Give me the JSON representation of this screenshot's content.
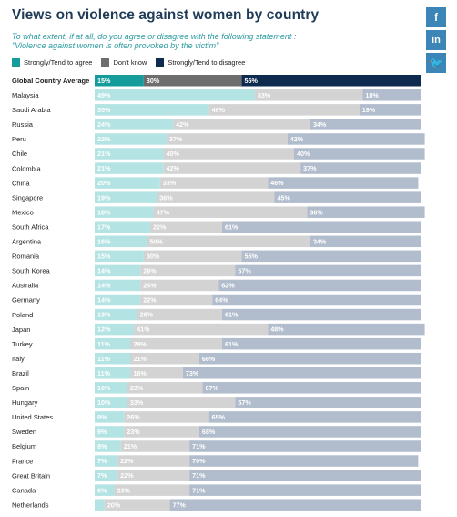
{
  "title": "Views on violence against women by country",
  "subtitle": "To what extent, if at all, do you agree or disagree with the following statement :\n\"Violence against women is often provoked by the victim\"",
  "social": {
    "facebook": "f",
    "linkedin": "in",
    "twitter": "🐦"
  },
  "colors": {
    "agree": "#b4e3e3",
    "dontknow": "#d3d3d3",
    "disagree": "#b1bccc",
    "avg_agree": "#169b9b",
    "avg_dontknow": "#6e6e6e",
    "avg_disagree": "#0e2a4f",
    "legend_agree": "#169b9b",
    "legend_dontknow": "#6e6e6e",
    "legend_disagree": "#0e2a4f"
  },
  "chart_data": {
    "type": "bar",
    "stacked": true,
    "orientation": "horizontal",
    "unit": "%",
    "categories": [
      "Global Country Average",
      "Malaysia",
      "Saudi Arabia",
      "Russia",
      "Peru",
      "Chile",
      "Colombia",
      "China",
      "Singapore",
      "Mexico",
      "South Africa",
      "Argentina",
      "Romania",
      "South Korea",
      "Australia",
      "Germany",
      "Poland",
      "Japan",
      "Turkey",
      "Italy",
      "Brazil",
      "Spain",
      "Hungary",
      "United States",
      "Sweden",
      "Belgium",
      "France",
      "Great Britain",
      "Canada",
      "Netherlands"
    ],
    "series": [
      {
        "name": "Strongly/Tend to agree",
        "values": [
          15,
          49,
          35,
          24,
          22,
          21,
          21,
          20,
          19,
          18,
          17,
          16,
          15,
          14,
          14,
          14,
          13,
          12,
          11,
          11,
          11,
          10,
          10,
          9,
          9,
          8,
          7,
          7,
          6,
          3
        ],
        "labels": [
          "15%",
          "49%",
          "35%",
          "24%",
          "22%",
          "21%",
          "21%",
          "20%",
          "19%",
          "18%",
          "17%",
          "16%",
          "15%",
          "14%",
          "14%",
          "14%",
          "13%",
          "12%",
          "11%",
          "11%",
          "11%",
          "10%",
          "10%",
          "9%",
          "9%",
          "8%",
          "7%",
          "7%",
          "6%",
          ""
        ]
      },
      {
        "name": "Don't know",
        "values": [
          30,
          33,
          46,
          42,
          37,
          40,
          42,
          33,
          36,
          47,
          22,
          50,
          30,
          29,
          24,
          22,
          26,
          41,
          28,
          21,
          16,
          23,
          33,
          26,
          23,
          21,
          22,
          22,
          23,
          20
        ],
        "labels": [
          "30%",
          "33%",
          "46%",
          "42%",
          "37%",
          "40%",
          "42%",
          "33%",
          "36%",
          "47%",
          "22%",
          "50%",
          "30%",
          "29%",
          "24%",
          "22%",
          "26%",
          "41%",
          "28%",
          "21%",
          "16%",
          "23%",
          "33%",
          "26%",
          "23%",
          "21%",
          "22%",
          "22%",
          "23%",
          "20%"
        ]
      },
      {
        "name": "Strongly/Tend to disagree",
        "values": [
          55,
          18,
          19,
          34,
          42,
          40,
          37,
          46,
          45,
          36,
          61,
          34,
          55,
          57,
          62,
          64,
          61,
          48,
          61,
          68,
          73,
          67,
          57,
          65,
          68,
          71,
          70,
          71,
          71,
          77
        ],
        "labels": [
          "55%",
          "18%",
          "19%",
          "34%",
          "42%",
          "40%",
          "37%",
          "46%",
          "45%",
          "36%",
          "61%",
          "34%",
          "55%",
          "57%",
          "62%",
          "64%",
          "61%",
          "48%",
          "61%",
          "68%",
          "73%",
          "67%",
          "57%",
          "65%",
          "68%",
          "71%",
          "70%",
          "71%",
          "71%",
          "77%"
        ]
      }
    ],
    "xlim": [
      0,
      100
    ],
    "legend": "top-left",
    "grid": false
  }
}
